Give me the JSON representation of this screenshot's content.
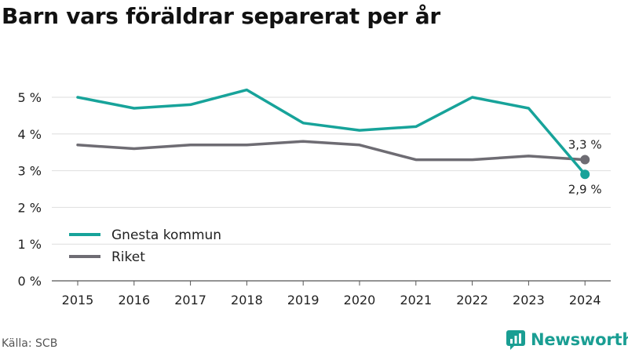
{
  "title": "Barn vars föräldrar separerat per år",
  "source": "Källa: SCB",
  "brand": {
    "name": "Newsworthy",
    "color": "#1a9e93"
  },
  "chart_data": {
    "type": "line",
    "x": [
      "2015",
      "2016",
      "2017",
      "2018",
      "2019",
      "2020",
      "2021",
      "2022",
      "2023",
      "2024"
    ],
    "ylim": [
      0,
      5.5
    ],
    "yticks": [
      0,
      1,
      2,
      3,
      4,
      5
    ],
    "ytick_labels": [
      "0 %",
      "1 %",
      "2 %",
      "3 %",
      "4 %",
      "5 %"
    ],
    "grid": true,
    "legend_position": "bottom-left",
    "series": [
      {
        "name": "Gnesta kommun",
        "color": "#17a39a",
        "values": [
          5.0,
          4.7,
          4.8,
          5.2,
          4.3,
          4.1,
          4.2,
          5.0,
          4.7,
          2.9
        ],
        "end_label": "2,9 %"
      },
      {
        "name": "Riket",
        "color": "#6e6c73",
        "values": [
          3.7,
          3.6,
          3.7,
          3.7,
          3.8,
          3.7,
          3.3,
          3.3,
          3.4,
          3.3
        ],
        "end_label": "3,3 %"
      }
    ]
  }
}
